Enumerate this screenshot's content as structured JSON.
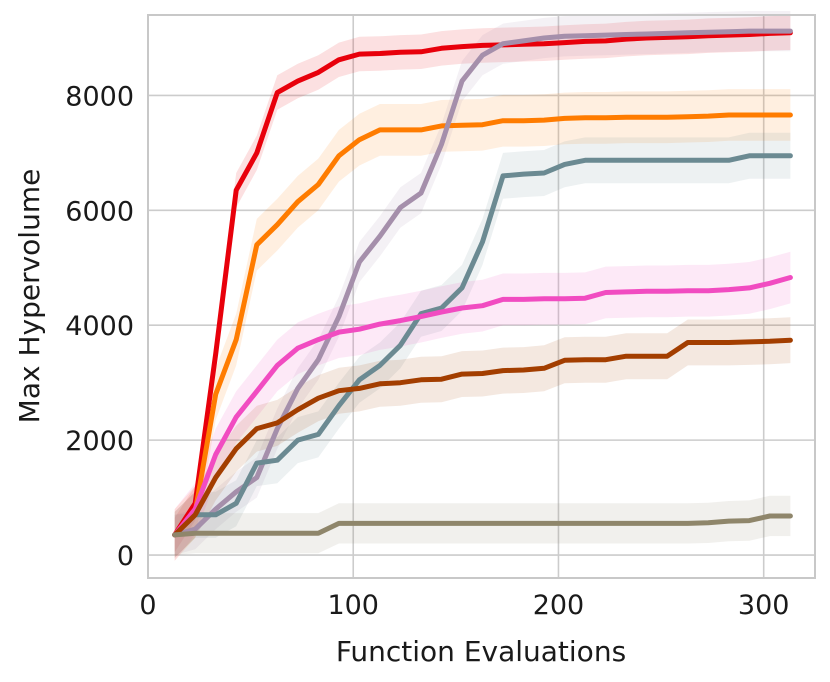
{
  "chart_data": {
    "type": "line",
    "title": "",
    "xlabel": "Function Evaluations",
    "ylabel": "Max Hypervolume",
    "xlim": [
      0,
      325
    ],
    "ylim": [
      -400,
      9400
    ],
    "xticks": [
      0,
      100,
      200,
      300
    ],
    "yticks": [
      0,
      2000,
      4000,
      6000,
      8000
    ],
    "grid": true,
    "legend": "none",
    "x": [
      13,
      23,
      33,
      43,
      53,
      63,
      73,
      83,
      93,
      103,
      113,
      123,
      133,
      143,
      153,
      163,
      173,
      183,
      193,
      203,
      213,
      223,
      233,
      243,
      253,
      263,
      273,
      283,
      293,
      303,
      313
    ],
    "series": [
      {
        "name": "red",
        "color": "#e8000b",
        "band": 300,
        "values": [
          350,
          900,
          3500,
          6350,
          7000,
          8050,
          8250,
          8400,
          8620,
          8720,
          8730,
          8750,
          8760,
          8820,
          8850,
          8870,
          8880,
          8890,
          8900,
          8920,
          8940,
          8950,
          8980,
          9000,
          9010,
          9020,
          9040,
          9050,
          9060,
          9080,
          9090
        ]
      },
      {
        "name": "orange",
        "color": "#ff7c00",
        "band": 450,
        "values": [
          350,
          750,
          2800,
          3750,
          5400,
          5750,
          6150,
          6450,
          6950,
          7230,
          7400,
          7400,
          7400,
          7470,
          7480,
          7490,
          7560,
          7560,
          7570,
          7600,
          7610,
          7610,
          7620,
          7620,
          7620,
          7630,
          7640,
          7660,
          7660,
          7660,
          7660
        ]
      },
      {
        "name": "mauve",
        "color": "#a58fab",
        "band": 350,
        "values": [
          350,
          450,
          800,
          1100,
          1350,
          2200,
          2900,
          3400,
          4150,
          5100,
          5550,
          6050,
          6300,
          7150,
          8250,
          8700,
          8900,
          8950,
          9000,
          9030,
          9040,
          9050,
          9060,
          9070,
          9080,
          9090,
          9100,
          9110,
          9120,
          9120,
          9120
        ]
      },
      {
        "name": "slate",
        "color": "#6b8a92",
        "band": 400,
        "values": [
          350,
          700,
          700,
          900,
          1600,
          1650,
          2000,
          2100,
          2600,
          3050,
          3300,
          3650,
          4200,
          4300,
          4650,
          5450,
          6600,
          6630,
          6650,
          6800,
          6870,
          6870,
          6870,
          6870,
          6870,
          6870,
          6870,
          6870,
          6950,
          6950,
          6950
        ]
      },
      {
        "name": "pink",
        "color": "#f14cc1",
        "band": 450,
        "values": [
          350,
          800,
          1750,
          2400,
          2850,
          3300,
          3600,
          3750,
          3880,
          3930,
          4020,
          4080,
          4150,
          4230,
          4300,
          4340,
          4450,
          4450,
          4460,
          4460,
          4470,
          4570,
          4580,
          4590,
          4590,
          4600,
          4600,
          4620,
          4650,
          4730,
          4830
        ]
      },
      {
        "name": "brown",
        "color": "#a33e00",
        "band": 400,
        "values": [
          350,
          700,
          1350,
          1850,
          2200,
          2300,
          2530,
          2730,
          2860,
          2900,
          2980,
          3000,
          3050,
          3060,
          3150,
          3160,
          3210,
          3220,
          3250,
          3390,
          3400,
          3400,
          3460,
          3460,
          3460,
          3700,
          3700,
          3700,
          3710,
          3720,
          3740
        ]
      },
      {
        "name": "khaki",
        "color": "#8f866b",
        "band": 350,
        "values": [
          350,
          380,
          380,
          380,
          380,
          380,
          380,
          380,
          550,
          550,
          550,
          550,
          550,
          550,
          550,
          550,
          550,
          550,
          550,
          550,
          550,
          550,
          550,
          550,
          550,
          550,
          560,
          590,
          600,
          680,
          680
        ]
      }
    ]
  }
}
